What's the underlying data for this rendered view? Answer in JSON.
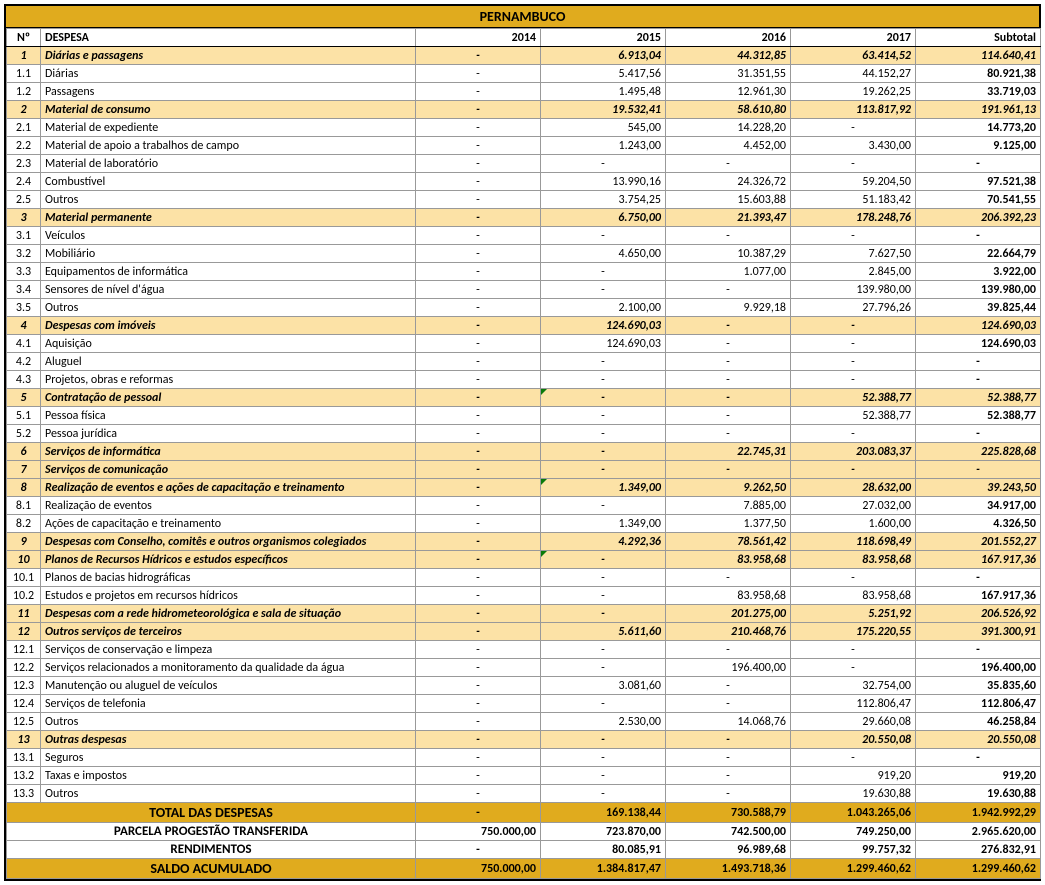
{
  "title": "PERNAMBUCO",
  "headers": {
    "no": "Nº",
    "desc": "DESPESA",
    "y2014": "2014",
    "y2015": "2015",
    "y2016": "2016",
    "y2017": "2017",
    "sub": "Subtotal"
  },
  "rows": [
    {
      "t": "cat",
      "no": "1",
      "desc": "Diárias e passagens",
      "v": [
        "-",
        "6.913,04",
        "44.312,85",
        "63.414,52",
        "114.640,41"
      ]
    },
    {
      "t": "sub",
      "no": "1.1",
      "desc": "Diárias",
      "v": [
        "-",
        "5.417,56",
        "31.351,55",
        "44.152,27",
        "80.921,38"
      ]
    },
    {
      "t": "sub",
      "no": "1.2",
      "desc": "Passagens",
      "v": [
        "-",
        "1.495,48",
        "12.961,30",
        "19.262,25",
        "33.719,03"
      ]
    },
    {
      "t": "cat",
      "no": "2",
      "desc": "Material de consumo",
      "v": [
        "-",
        "19.532,41",
        "58.610,80",
        "113.817,92",
        "191.961,13"
      ]
    },
    {
      "t": "sub",
      "no": "2.1",
      "desc": "Material de expediente",
      "v": [
        "-",
        "545,00",
        "14.228,20",
        "-",
        "14.773,20"
      ]
    },
    {
      "t": "sub",
      "no": "2.2",
      "desc": "Material de apoio a trabalhos de campo",
      "v": [
        "-",
        "1.243,00",
        "4.452,00",
        "3.430,00",
        "9.125,00"
      ]
    },
    {
      "t": "sub",
      "no": "2.3",
      "desc": "Material de laboratório",
      "v": [
        "-",
        "-",
        "-",
        "-",
        "-"
      ]
    },
    {
      "t": "sub",
      "no": "2.4",
      "desc": "Combustível",
      "v": [
        "-",
        "13.990,16",
        "24.326,72",
        "59.204,50",
        "97.521,38"
      ]
    },
    {
      "t": "sub",
      "no": "2.5",
      "desc": "Outros",
      "v": [
        "-",
        "3.754,25",
        "15.603,88",
        "51.183,42",
        "70.541,55"
      ]
    },
    {
      "t": "cat",
      "no": "3",
      "desc": "Material permanente",
      "v": [
        "-",
        "6.750,00",
        "21.393,47",
        "178.248,76",
        "206.392,23"
      ]
    },
    {
      "t": "sub",
      "no": "3.1",
      "desc": "Veículos",
      "v": [
        "-",
        "-",
        "-",
        "-",
        "-"
      ]
    },
    {
      "t": "sub",
      "no": "3.2",
      "desc": "Mobiliário",
      "v": [
        "-",
        "4.650,00",
        "10.387,29",
        "7.627,50",
        "22.664,79"
      ]
    },
    {
      "t": "sub",
      "no": "3.3",
      "desc": "Equipamentos de informática",
      "v": [
        "-",
        "-",
        "1.077,00",
        "2.845,00",
        "3.922,00"
      ]
    },
    {
      "t": "sub",
      "no": "3.4",
      "desc": "Sensores de nível d'água",
      "v": [
        "-",
        "-",
        "-",
        "139.980,00",
        "139.980,00"
      ]
    },
    {
      "t": "sub",
      "no": "3.5",
      "desc": "Outros",
      "v": [
        "-",
        "2.100,00",
        "9.929,18",
        "27.796,26",
        "39.825,44"
      ]
    },
    {
      "t": "cat",
      "no": "4",
      "desc": "Despesas com imóveis",
      "v": [
        "-",
        "124.690,03",
        "-",
        "-",
        "124.690,03"
      ]
    },
    {
      "t": "sub",
      "no": "4.1",
      "desc": "Aquisição",
      "v": [
        "-",
        "124.690,03",
        "-",
        "-",
        "124.690,03"
      ]
    },
    {
      "t": "sub",
      "no": "4.2",
      "desc": "Aluguel",
      "v": [
        "-",
        "-",
        "-",
        "-",
        "-"
      ]
    },
    {
      "t": "sub",
      "no": "4.3",
      "desc": "Projetos, obras e reformas",
      "v": [
        "-",
        "-",
        "-",
        "-",
        "-"
      ]
    },
    {
      "t": "cat",
      "no": "5",
      "desc": "Contratação de pessoal",
      "v": [
        "-",
        "-",
        "-",
        "52.388,77",
        "52.388,77"
      ],
      "mark": 1
    },
    {
      "t": "sub",
      "no": "5.1",
      "desc": "Pessoa física",
      "v": [
        "-",
        "-",
        "-",
        "52.388,77",
        "52.388,77"
      ]
    },
    {
      "t": "sub",
      "no": "5.2",
      "desc": "Pessoa jurídica",
      "v": [
        "-",
        "-",
        "-",
        "-",
        "-"
      ]
    },
    {
      "t": "cat",
      "no": "6",
      "desc": "Serviços de informática",
      "v": [
        "-",
        "-",
        "22.745,31",
        "203.083,37",
        "225.828,68"
      ]
    },
    {
      "t": "cat",
      "no": "7",
      "desc": "Serviços de comunicação",
      "v": [
        "-",
        "-",
        "-",
        "-",
        "-"
      ]
    },
    {
      "t": "cat",
      "no": "8",
      "desc": "Realização de eventos e ações de capacitação e treinamento",
      "v": [
        "-",
        "1.349,00",
        "9.262,50",
        "28.632,00",
        "39.243,50"
      ],
      "mark": 1
    },
    {
      "t": "sub",
      "no": "8.1",
      "desc": "Realização de eventos",
      "v": [
        "-",
        "-",
        "7.885,00",
        "27.032,00",
        "34.917,00"
      ]
    },
    {
      "t": "sub",
      "no": "8.2",
      "desc": "Ações de capacitação e treinamento",
      "v": [
        "-",
        "1.349,00",
        "1.377,50",
        "1.600,00",
        "4.326,50"
      ]
    },
    {
      "t": "cat",
      "no": "9",
      "desc": "Despesas com Conselho, comitês e outros organismos colegiados",
      "v": [
        "-",
        "4.292,36",
        "78.561,42",
        "118.698,49",
        "201.552,27"
      ]
    },
    {
      "t": "cat",
      "no": "10",
      "desc": "Planos de Recursos Hídricos e estudos específicos",
      "v": [
        "-",
        "-",
        "83.958,68",
        "83.958,68",
        "167.917,36"
      ],
      "mark": 1
    },
    {
      "t": "sub",
      "no": "10.1",
      "desc": "Planos de bacias hidrográficas",
      "v": [
        "-",
        "-",
        "-",
        "-",
        "-"
      ]
    },
    {
      "t": "sub",
      "no": "10.2",
      "desc": "Estudos e projetos em recursos hídricos",
      "v": [
        "-",
        "-",
        "83.958,68",
        "83.958,68",
        "167.917,36"
      ]
    },
    {
      "t": "cat",
      "no": "11",
      "desc": "Despesas com a rede hidrometeorológica e sala de situação",
      "v": [
        "-",
        "-",
        "201.275,00",
        "5.251,92",
        "206.526,92"
      ]
    },
    {
      "t": "cat",
      "no": "12",
      "desc": "Outros serviços de terceiros",
      "v": [
        "-",
        "5.611,60",
        "210.468,76",
        "175.220,55",
        "391.300,91"
      ]
    },
    {
      "t": "sub",
      "no": "12.1",
      "desc": "Serviços de conservação e limpeza",
      "v": [
        "-",
        "-",
        "-",
        "-",
        "-"
      ]
    },
    {
      "t": "sub",
      "no": "12.2",
      "desc": "Serviços relacionados a monitoramento da qualidade da água",
      "v": [
        "-",
        "-",
        "196.400,00",
        "-",
        "196.400,00"
      ]
    },
    {
      "t": "sub",
      "no": "12.3",
      "desc": "Manutenção ou aluguel de veículos",
      "v": [
        "-",
        "3.081,60",
        "-",
        "32.754,00",
        "35.835,60"
      ]
    },
    {
      "t": "sub",
      "no": "12.4",
      "desc": "Serviços de telefonia",
      "v": [
        "-",
        "-",
        "-",
        "112.806,47",
        "112.806,47"
      ]
    },
    {
      "t": "sub",
      "no": "12.5",
      "desc": "Outros",
      "v": [
        "-",
        "2.530,00",
        "14.068,76",
        "29.660,08",
        "46.258,84"
      ]
    },
    {
      "t": "cat",
      "no": "13",
      "desc": "Outras despesas",
      "v": [
        "-",
        "-",
        "-",
        "20.550,08",
        "20.550,08"
      ]
    },
    {
      "t": "sub",
      "no": "13.1",
      "desc": "Seguros",
      "v": [
        "-",
        "-",
        "-",
        "-",
        "-"
      ]
    },
    {
      "t": "sub",
      "no": "13.2",
      "desc": "Taxas e impostos",
      "v": [
        "-",
        "-",
        "-",
        "919,20",
        "919,20"
      ]
    },
    {
      "t": "sub",
      "no": "13.3",
      "desc": "Outros",
      "v": [
        "-",
        "-",
        "-",
        "19.630,88",
        "19.630,88"
      ]
    }
  ],
  "totals": [
    {
      "dark": true,
      "label": "TOTAL DAS DESPESAS",
      "v": [
        "-",
        "169.138,44",
        "730.588,79",
        "1.043.265,06",
        "1.942.992,29"
      ]
    },
    {
      "dark": false,
      "label": "PARCELA PROGESTÃO TRANSFERIDA",
      "v": [
        "750.000,00",
        "723.870,00",
        "742.500,00",
        "749.250,00",
        "2.965.620,00"
      ]
    },
    {
      "dark": false,
      "label": "RENDIMENTOS",
      "v": [
        "-",
        "80.085,91",
        "96.989,68",
        "99.757,32",
        "276.832,91"
      ]
    },
    {
      "dark": true,
      "label": "SALDO ACUMULADO",
      "v": [
        "750.000,00",
        "1.384.817,47",
        "1.493.718,36",
        "1.299.460,62",
        "1.299.460,62"
      ]
    }
  ]
}
